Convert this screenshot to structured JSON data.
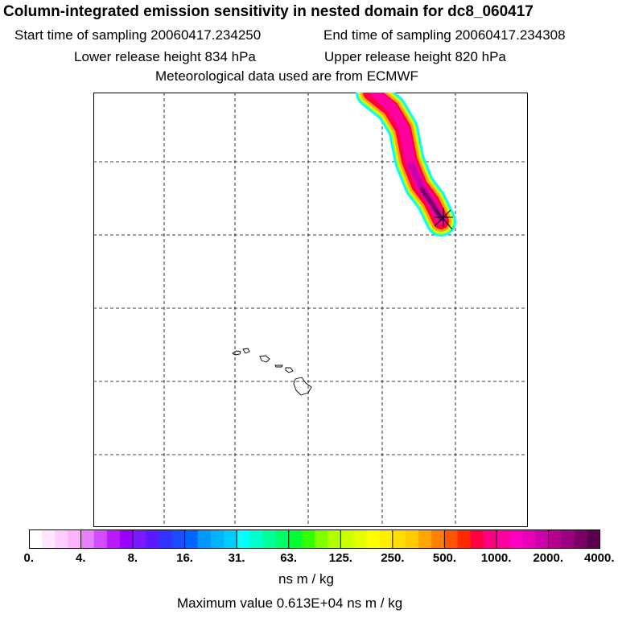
{
  "header": {
    "title": "Column-integrated emission sensitivity in nested domain for dc8_060417",
    "start_time": "Start time of sampling 20060417.234250",
    "end_time": "End time of sampling 20060417.234308",
    "lower_release": "Lower release height  834 hPa",
    "upper_release": "Upper release height  820 hPa",
    "met_data": "Meteorological data used are from ECMWF"
  },
  "map": {
    "grid_divisions": 6,
    "features": [
      "hawaiian-islands-outline",
      "emission-plume",
      "release-point-marker"
    ]
  },
  "colorbar": {
    "colors": [
      "#ffffff",
      "#ffe6ff",
      "#ffccff",
      "#ffb3ff",
      "#e680ff",
      "#d24dff",
      "#bb1aff",
      "#9900ff",
      "#7a1aff",
      "#5a1aff",
      "#3333ff",
      "#1a4dff",
      "#0066ff",
      "#0099ff",
      "#00b3ff",
      "#00ccff",
      "#00ffff",
      "#00ffcc",
      "#00ff99",
      "#00ff66",
      "#00ff33",
      "#33ff00",
      "#80ff00",
      "#b3ff00",
      "#ccff00",
      "#e6ff00",
      "#ffff00",
      "#ffee00",
      "#ffdd00",
      "#ffcc00",
      "#ffa500",
      "#ff8000",
      "#ff5500",
      "#ff2a00",
      "#ff0040",
      "#ff0080",
      "#ff00a0",
      "#ff00c0",
      "#e600b8",
      "#cc00aa",
      "#b3008c",
      "#990080",
      "#7a0066",
      "#5a004d"
    ],
    "tick_labels": [
      "0.",
      "4.",
      "8.",
      "16.",
      "31.",
      "63.",
      "125.",
      "250.",
      "500.",
      "1000.",
      "2000.",
      "4000."
    ],
    "units": "ns m / kg"
  },
  "footer": {
    "max_value": "Maximum value  0.613E+04 ns m / kg"
  }
}
